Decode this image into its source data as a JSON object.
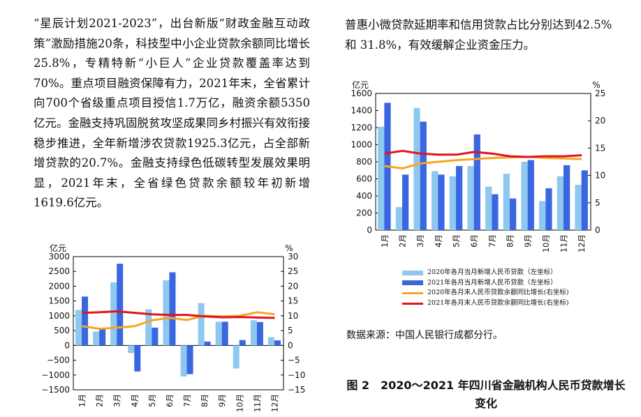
{
  "left_paragraph": "“星辰计划2021-2023”，出台新版“财政金融互动政策”激励措施20条，科技型中小企业贷款余额同比增长25.8%，专精特新“小巨人”企业贷款覆盖率达到70%。重点项目融资保障有力，2021年末，全省累计向700个省级重点项目授信1.7万亿，融资余额5350亿元。金融支持巩固脱贫攻坚成果同乡村振兴有效衔接稳步推进，全年新增涉农贷款1925.3亿元，占全部新增贷款的20.7%。金融支持绿色低碳转型发展效果明显，2021年末，全省绿色贷款余额较年初新增1619.6亿元。",
  "right_paragraph": "普惠小微贷款延期率和信用贷款占比分别达到42.5%和 31.8%，有效缓解企业资金压力。",
  "source_note": "数据来源：中国人民银行成都分行。",
  "caption": "图 2　2020～2021 年四川省金融机构人民币贷款增长变化",
  "colors": {
    "bar2020": "#8ec8f0",
    "bar2021": "#3a66e0",
    "line2020": "#f5a623",
    "line2021": "#e0141a"
  },
  "chart_data": [
    {
      "type": "bar",
      "ylabel_left": "亿元",
      "ylabel_right": "%",
      "ylim": [
        -1500,
        3000
      ],
      "ylim_right": [
        -15,
        30
      ],
      "yticks": [
        "3000",
        "2500",
        "2000",
        "1500",
        "1000",
        "500",
        "0",
        "−500",
        "−1000",
        "−1500"
      ],
      "yticks_right": [
        "30",
        "25",
        "20",
        "15",
        "10",
        "5",
        "0",
        "−5",
        "−10",
        "−15"
      ],
      "categories": [
        "1月",
        "2月",
        "3月",
        "4月",
        "5月",
        "6月",
        "7月",
        "8月",
        "9月",
        "10月",
        "11月",
        "12月"
      ],
      "series": [
        {
          "kind": "bar",
          "values": [
            1200,
            470,
            2130,
            -260,
            1220,
            2200,
            -1050,
            1430,
            800,
            -780,
            850,
            280
          ]
        },
        {
          "kind": "bar",
          "values": [
            1650,
            580,
            2760,
            -880,
            600,
            2470,
            -970,
            130,
            800,
            180,
            790,
            170
          ]
        },
        {
          "kind": "line",
          "axis": "right",
          "values": [
            6.5,
            5.6,
            6.0,
            6.5,
            8.5,
            9.3,
            8.6,
            10.0,
            9.8,
            10.0,
            11.2,
            10.5
          ]
        },
        {
          "kind": "line",
          "axis": "right",
          "values": [
            11.0,
            11.2,
            11.5,
            11.0,
            10.5,
            10.3,
            10.3,
            9.8,
            9.5,
            9.6,
            9.4,
            9.3
          ]
        }
      ]
    },
    {
      "type": "bar",
      "ylabel_left": "亿元",
      "ylabel_right": "%",
      "ylim": [
        0,
        1600
      ],
      "ylim_right": [
        0,
        25
      ],
      "yticks": [
        "1600",
        "1400",
        "1200",
        "1000",
        "800",
        "600",
        "400",
        "200",
        "0"
      ],
      "yticks_right": [
        "25",
        "20",
        "15",
        "10",
        "5",
        "0"
      ],
      "categories": [
        "1月",
        "2月",
        "3月",
        "4月",
        "5月",
        "6月",
        "7月",
        "8月",
        "9月",
        "10月",
        "11月",
        "12月"
      ],
      "series": [
        {
          "name": "2020年各月当月新增人民币贷款（左坐标）",
          "kind": "bar",
          "values": [
            1210,
            270,
            1430,
            690,
            630,
            750,
            510,
            660,
            800,
            340,
            630,
            530
          ]
        },
        {
          "name": "2021年各月当月新增人民币贷款（左坐标）",
          "kind": "bar",
          "values": [
            1490,
            650,
            1270,
            650,
            750,
            1120,
            420,
            370,
            820,
            490,
            760,
            700
          ]
        },
        {
          "name": "2020年各月末人民币贷款余额同比增长(右坐标)",
          "kind": "line",
          "axis": "right",
          "values": [
            11.7,
            11.3,
            12.2,
            12.5,
            12.8,
            13.0,
            13.2,
            13.3,
            13.4,
            13.2,
            13.1,
            13.0
          ]
        },
        {
          "name": "2021年各月末人民币贷款余额同比增长(右坐标)",
          "kind": "line",
          "axis": "right",
          "values": [
            14.0,
            14.5,
            14.0,
            13.8,
            13.8,
            14.3,
            14.0,
            13.5,
            13.4,
            13.5,
            13.5,
            13.7
          ]
        }
      ]
    }
  ]
}
